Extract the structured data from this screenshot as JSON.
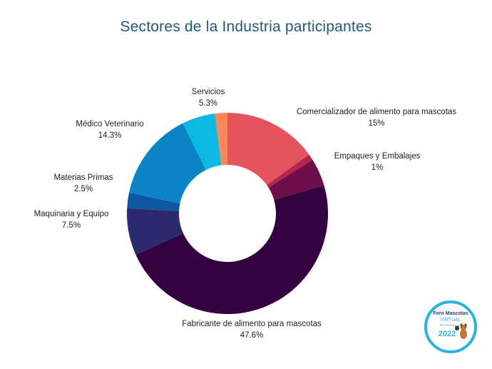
{
  "chart_data": {
    "type": "pie",
    "title": "Sectores de la Industria participantes",
    "slices": [
      {
        "name": "Comercializador de alimento para mascotas",
        "value": 15,
        "label": "15%",
        "color": "#e4545c"
      },
      {
        "name": "Empaques y Embalajes",
        "value": 1,
        "label": "1%",
        "color": "#b8264e"
      },
      {
        "name": "",
        "value": 4.4,
        "label": "",
        "color": "#6e0f49"
      },
      {
        "name": "Fabricante de alimento para mascotas",
        "value": 47.6,
        "label": "47.6%",
        "color": "#33013f"
      },
      {
        "name": "Maquinaria y Equipo",
        "value": 7.5,
        "label": "7.5%",
        "color": "#2c2a6e"
      },
      {
        "name": "Materias Primas",
        "value": 2.5,
        "label": "2.5%",
        "color": "#0e56a2"
      },
      {
        "name": "Médico Veterinario",
        "value": 14.3,
        "label": "14.3%",
        "color": "#0a84c4"
      },
      {
        "name": "Servicios",
        "value": 5.3,
        "label": "5.3%",
        "color": "#0cb9e3"
      },
      {
        "name": "",
        "value": 2.0,
        "label": "",
        "color": "#f9885a"
      }
    ]
  },
  "logo": {
    "line1": "Foro Mascotas",
    "line2": "VIRTUAL",
    "line3": "PET-FOOD",
    "year": "2022",
    "ring_color": "#2bb3e0",
    "text_color": "#1b3f8f"
  }
}
